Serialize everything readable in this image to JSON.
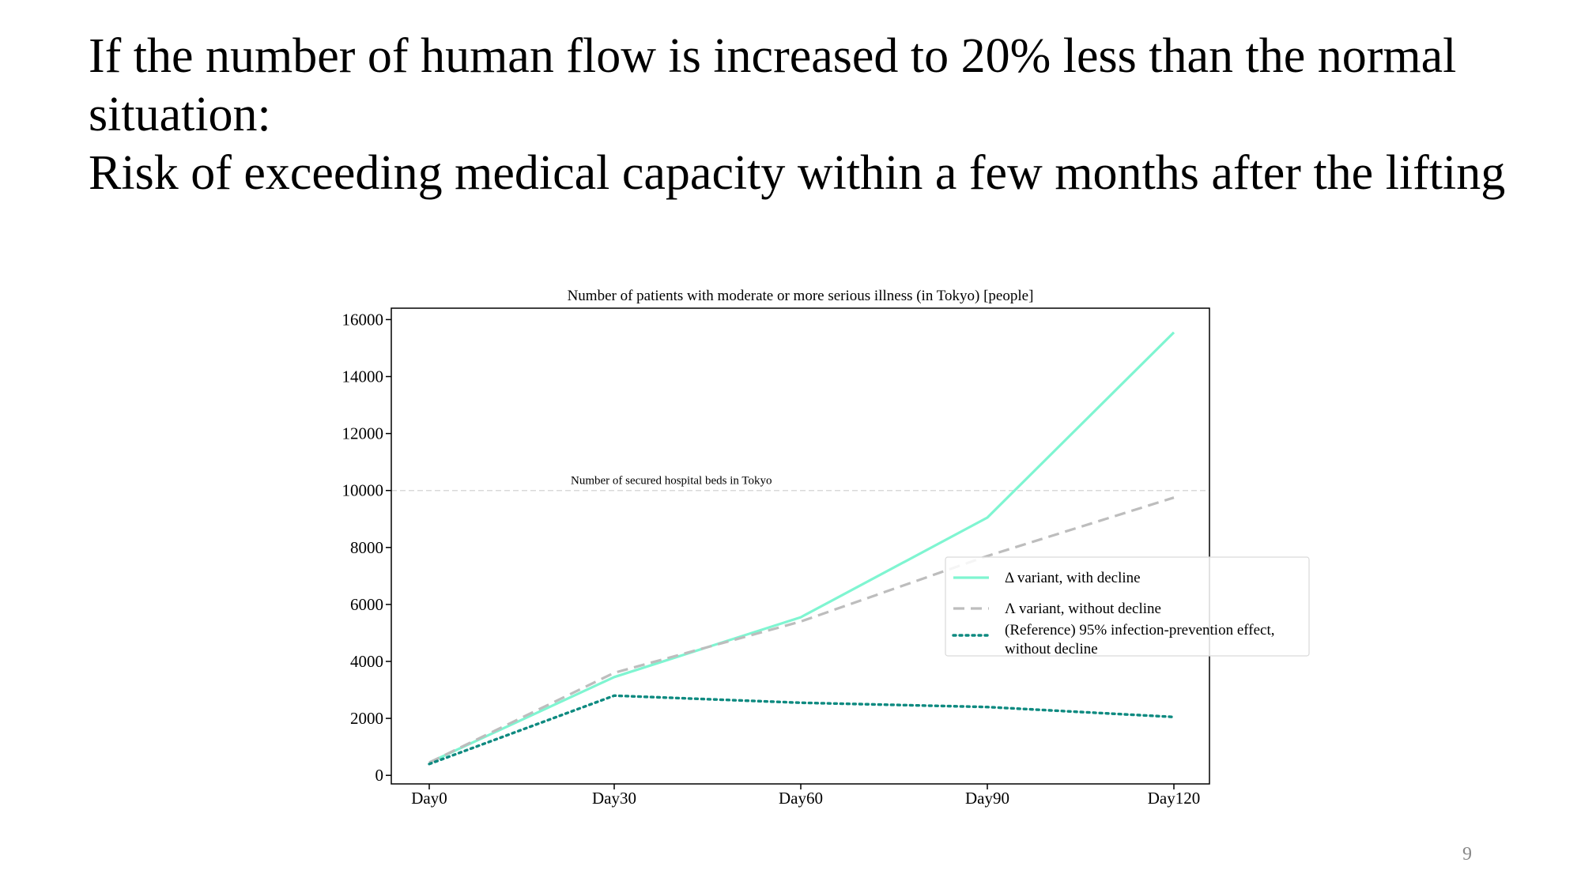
{
  "slide": {
    "heading_lines": [
      "If the number of human flow is increased to 20% less than the normal",
      "situation:",
      "Risk of exceeding medical capacity within a few months after the lifting"
    ],
    "page_number": "9"
  },
  "chart_data": {
    "type": "line",
    "title": "Number of patients with moderate or more serious illness (in Tokyo) [people]",
    "xlabel": "",
    "ylabel": "",
    "categories": [
      "Day0",
      "Day30",
      "Day60",
      "Day90",
      "Day120"
    ],
    "ylim": [
      -300,
      16400
    ],
    "yticks": [
      0,
      2000,
      4000,
      6000,
      8000,
      10000,
      12000,
      14000,
      16000
    ],
    "grid": false,
    "legend_position": "right",
    "reference_line": {
      "value": 10000,
      "label": "Number of secured hospital beds in Tokyo",
      "color": "#d9d9d9"
    },
    "series": [
      {
        "name": "Δ variant, with decline",
        "values": [
          450,
          3450,
          5550,
          9050,
          15550
        ],
        "color": "#7ff5d1",
        "style": "solid"
      },
      {
        "name": "Λ variant, without decline",
        "values": [
          450,
          3600,
          5400,
          7700,
          9750
        ],
        "color": "#bdbdbd",
        "style": "dashed"
      },
      {
        "name": "(Reference) 95% infection-prevention effect, without decline",
        "legend_lines": [
          "(Reference) 95% infection-prevention effect,",
          "without decline"
        ],
        "values": [
          400,
          2800,
          2550,
          2400,
          2050
        ],
        "color": "#0e8a80",
        "style": "dotted"
      }
    ]
  }
}
